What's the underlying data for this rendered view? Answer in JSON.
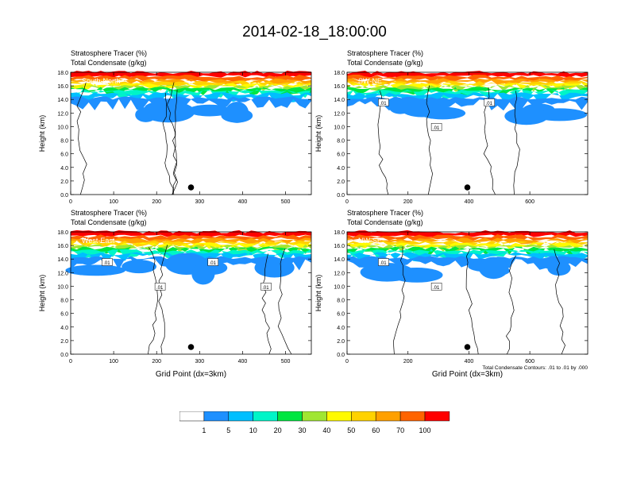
{
  "title": "2014-02-18_18:00:00",
  "panel_title_line1": "Stratosphere Tracer   (%)",
  "panel_title_line2": "Total Condensate   (g/kg)",
  "ylabel": "Height (km)",
  "xlabel": "Grid Point (dx=3km)",
  "contour_note": "Total Condensate Contours: .01 to .01 by .000",
  "contour_label": ".01",
  "chart_data": [
    {
      "type": "heatmap",
      "panel": "South-North",
      "xlim": [
        0,
        560
      ],
      "ylim": [
        0,
        18
      ],
      "xticks": [
        "0",
        "100",
        "200",
        "300",
        "400",
        "500"
      ],
      "yticks": [
        "0.0",
        "2.0",
        "4.0",
        "6.0",
        "8.0",
        "10.0",
        "12.0",
        "14.0",
        "16.0",
        "18.0"
      ],
      "marker_x": 280,
      "contour_labels": []
    },
    {
      "type": "heatmap",
      "panel": "SW-NE",
      "xlim": [
        0,
        790
      ],
      "ylim": [
        0,
        18
      ],
      "xticks": [
        "0",
        "200",
        "400",
        "600"
      ],
      "yticks": [
        "0.0",
        "2.0",
        "4.0",
        "6.0",
        "8.0",
        "10.0",
        "12.0",
        "14.0",
        "16.0",
        "18.0"
      ],
      "marker_x": 395,
      "contour_labels": [
        ".01",
        ".01",
        ".01"
      ]
    },
    {
      "type": "heatmap",
      "panel": "West-East",
      "xlim": [
        0,
        560
      ],
      "ylim": [
        0,
        18
      ],
      "xticks": [
        "0",
        "100",
        "200",
        "300",
        "400",
        "500"
      ],
      "yticks": [
        "0.0",
        "2.0",
        "4.0",
        "6.0",
        "8.0",
        "10.0",
        "12.0",
        "14.0",
        "16.0",
        "18.0"
      ],
      "marker_x": 280,
      "contour_labels": [
        ".01",
        ".01",
        ".01",
        ".01"
      ]
    },
    {
      "type": "heatmap",
      "panel": "NW-SE",
      "xlim": [
        0,
        790
      ],
      "ylim": [
        0,
        18
      ],
      "xticks": [
        "0",
        "200",
        "400",
        "600"
      ],
      "yticks": [
        "0.0",
        "2.0",
        "4.0",
        "6.0",
        "8.0",
        "10.0",
        "12.0",
        "14.0",
        "16.0",
        "18.0"
      ],
      "marker_x": 395,
      "contour_labels": [
        ".01",
        ".01"
      ]
    }
  ],
  "colorbar": {
    "labels": [
      "1",
      "5",
      "10",
      "20",
      "30",
      "40",
      "50",
      "60",
      "70",
      "100"
    ],
    "colors": [
      "#ffffff",
      "#1e90ff",
      "#00bfff",
      "#00f5c8",
      "#00e641",
      "#a0e632",
      "#fffa00",
      "#ffd200",
      "#ffa000",
      "#ff6400",
      "#ff0000"
    ]
  }
}
